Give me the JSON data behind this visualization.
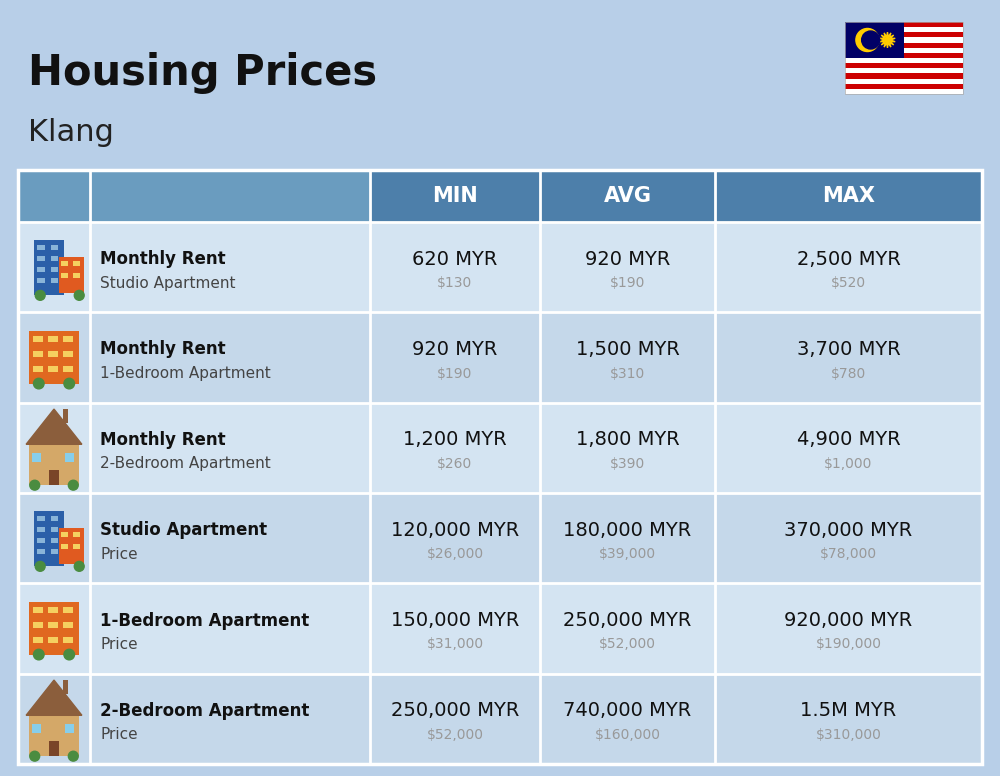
{
  "title": "Housing Prices",
  "subtitle": "Klang",
  "background_color": "#b8cfe8",
  "header_color": "#4d7faa",
  "header_light_color": "#6a9cbf",
  "row_colors": [
    "#d4e4f2",
    "#c5d8ea"
  ],
  "col_headers": [
    "MIN",
    "AVG",
    "MAX"
  ],
  "rows": [
    {
      "bold_label": "Monthly Rent",
      "sub_label": "Studio Apartment",
      "icon_type": "studio_blue",
      "min_myr": "620 MYR",
      "min_usd": "$130",
      "avg_myr": "920 MYR",
      "avg_usd": "$190",
      "max_myr": "2,500 MYR",
      "max_usd": "$520"
    },
    {
      "bold_label": "Monthly Rent",
      "sub_label": "1-Bedroom Apartment",
      "icon_type": "onebr_orange",
      "min_myr": "920 MYR",
      "min_usd": "$190",
      "avg_myr": "1,500 MYR",
      "avg_usd": "$310",
      "max_myr": "3,700 MYR",
      "max_usd": "$780"
    },
    {
      "bold_label": "Monthly Rent",
      "sub_label": "2-Bedroom Apartment",
      "icon_type": "twobr_tan",
      "min_myr": "1,200 MYR",
      "min_usd": "$260",
      "avg_myr": "1,800 MYR",
      "avg_usd": "$390",
      "max_myr": "4,900 MYR",
      "max_usd": "$1,000"
    },
    {
      "bold_label": "Studio Apartment",
      "sub_label": "Price",
      "icon_type": "studio_blue",
      "min_myr": "120,000 MYR",
      "min_usd": "$26,000",
      "avg_myr": "180,000 MYR",
      "avg_usd": "$39,000",
      "max_myr": "370,000 MYR",
      "max_usd": "$78,000"
    },
    {
      "bold_label": "1-Bedroom Apartment",
      "sub_label": "Price",
      "icon_type": "onebr_orange",
      "min_myr": "150,000 MYR",
      "min_usd": "$31,000",
      "avg_myr": "250,000 MYR",
      "avg_usd": "$52,000",
      "max_myr": "920,000 MYR",
      "max_usd": "$190,000"
    },
    {
      "bold_label": "2-Bedroom Apartment",
      "sub_label": "Price",
      "icon_type": "twobr_tan",
      "min_myr": "250,000 MYR",
      "min_usd": "$52,000",
      "avg_myr": "740,000 MYR",
      "avg_usd": "$160,000",
      "max_myr": "1.5M MYR",
      "max_usd": "$310,000"
    }
  ]
}
